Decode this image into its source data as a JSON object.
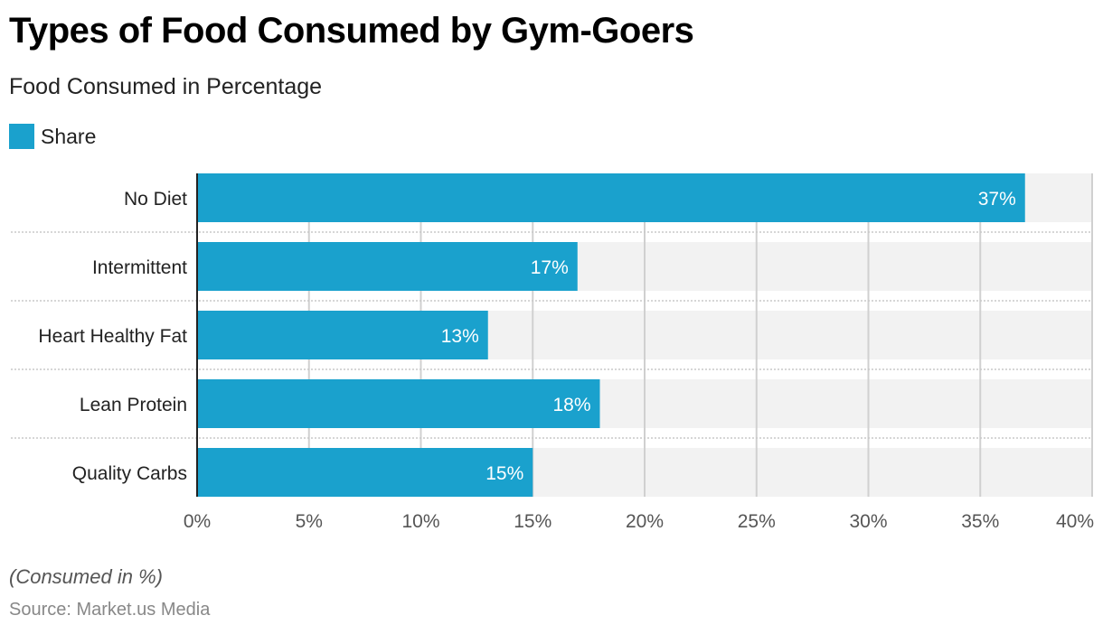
{
  "chart_data": {
    "type": "bar",
    "orientation": "horizontal",
    "title": "Types of Food Consumed by Gym-Goers",
    "subtitle": "Food Consumed in Percentage",
    "categories": [
      "No Diet",
      "Intermittent",
      "Heart Healthy Fat",
      "Lean Protein",
      "Quality Carbs"
    ],
    "series": [
      {
        "name": "Share",
        "values": [
          37,
          17,
          13,
          18,
          15
        ],
        "labels": [
          "37%",
          "17%",
          "13%",
          "18%",
          "15%"
        ]
      }
    ],
    "xlim": [
      0,
      40
    ],
    "x_ticks": [
      0,
      5,
      10,
      15,
      20,
      25,
      30,
      35,
      40
    ],
    "x_tick_labels": [
      "0%",
      "5%",
      "10%",
      "15%",
      "20%",
      "25%",
      "30%",
      "35%",
      "40%"
    ],
    "xlabel": "",
    "ylabel": "",
    "grid": true,
    "legend_position": "top-left",
    "note": "(Consumed in %)",
    "source": "Source: Market.us Media"
  },
  "colors": {
    "bar": "#1aa1cd",
    "track": "#f2f2f2",
    "grid": "#d0d0d0",
    "separator": "#c8c8c8",
    "axis": "#222222",
    "value_label": "#ffffff",
    "tick_label": "#555555",
    "category_label": "#222222"
  }
}
